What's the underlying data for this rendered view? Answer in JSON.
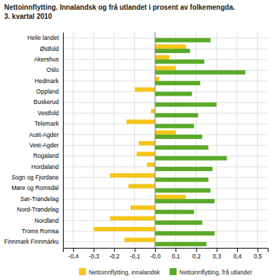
{
  "chart_data": {
    "type": "bar",
    "orientation": "horizontal",
    "title": "Nettoinnflytting. Innalandsk og frå utlandet i prosent av folkemengda.",
    "subtitle": "3. kvartal 2010",
    "categories": [
      "Heile landet",
      "Østfold",
      "Akershus",
      "Oslo",
      "Hedmark",
      "Oppland",
      "Buskerud",
      "Vestfold",
      "Telemark",
      "Aust-Agder",
      "Vest-Agder",
      "Rogaland",
      "Hordaland",
      "Sogn og Fjordane",
      "Møre og Romsdal",
      "Sør-Trøndelag",
      "Nord-Trøndelag",
      "Nordland",
      "Troms Romsa",
      "Finnmark Finnmárku"
    ],
    "series": [
      {
        "name": "Nettoinnflytting, innalandsk",
        "color": "#f5c518",
        "values": [
          0.0,
          0.15,
          0.07,
          0.1,
          0.02,
          -0.1,
          0.0,
          -0.02,
          -0.14,
          0.1,
          -0.08,
          -0.09,
          -0.04,
          -0.22,
          -0.13,
          0.15,
          -0.12,
          -0.22,
          -0.3,
          -0.15
        ]
      },
      {
        "name": "Nettoinnflytting, frå utlandet",
        "color": "#5aaa28",
        "values": [
          0.27,
          0.17,
          0.24,
          0.44,
          0.22,
          0.18,
          0.3,
          0.21,
          0.19,
          0.23,
          0.26,
          0.35,
          0.28,
          0.26,
          0.27,
          0.29,
          0.19,
          0.23,
          0.29,
          0.25
        ]
      }
    ],
    "xlim": [
      -0.45,
      0.55
    ],
    "xticks": [
      {
        "value": -0.4,
        "label": "-0,4"
      },
      {
        "value": -0.3,
        "label": "-0,3"
      },
      {
        "value": -0.2,
        "label": "-0,2"
      },
      {
        "value": -0.1,
        "label": "-0,1"
      },
      {
        "value": 0.0,
        "label": "-0,0"
      },
      {
        "value": 0.1,
        "label": "0,1"
      },
      {
        "value": 0.2,
        "label": "0,2"
      },
      {
        "value": 0.3,
        "label": "0,3"
      },
      {
        "value": 0.4,
        "label": "0,4"
      },
      {
        "value": 0.5,
        "label": "0,5"
      }
    ],
    "grid": true,
    "legend": "bottom"
  }
}
